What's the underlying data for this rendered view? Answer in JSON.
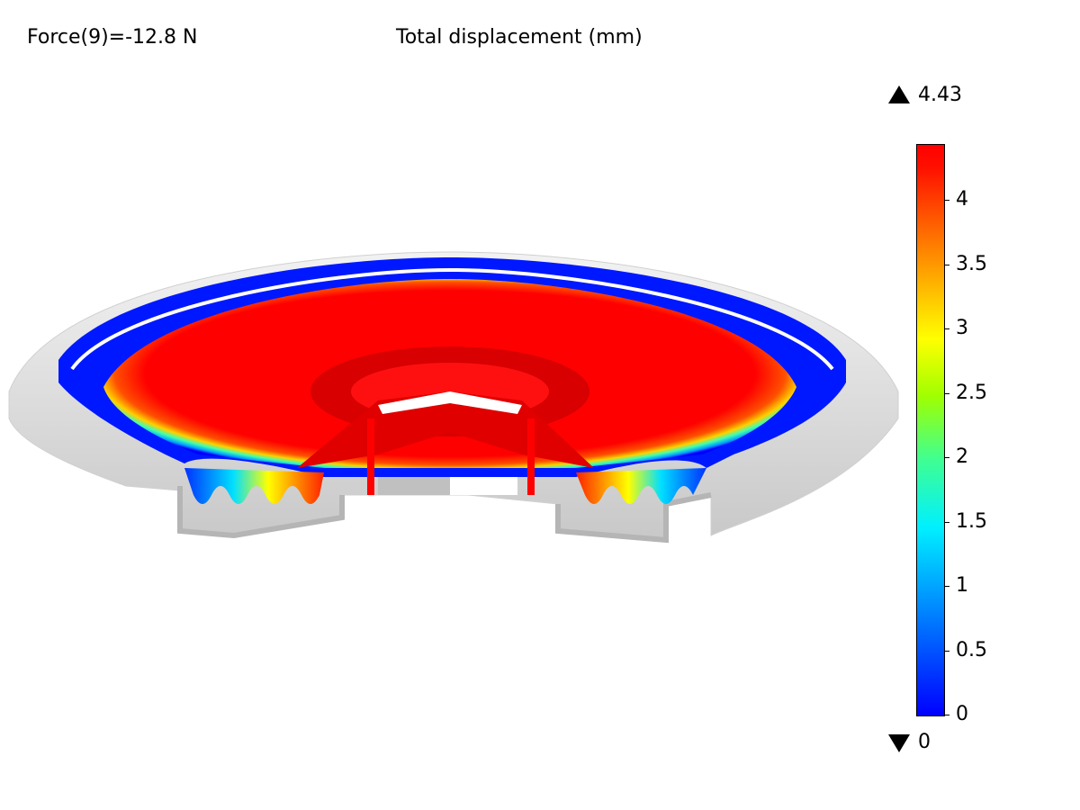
{
  "header": {
    "force_label": "Force(9)=-12.8 N",
    "title": "Total displacement (mm)"
  },
  "colorbar": {
    "max_label": "4.43",
    "min_label": "0",
    "ticks": [
      "4",
      "3.5",
      "3",
      "2.5",
      "2",
      "1.5",
      "1",
      "0.5",
      "0"
    ],
    "colors": {
      "low": "#0000ff",
      "mid": "#ffff00",
      "high": "#ff0000"
    }
  }
}
